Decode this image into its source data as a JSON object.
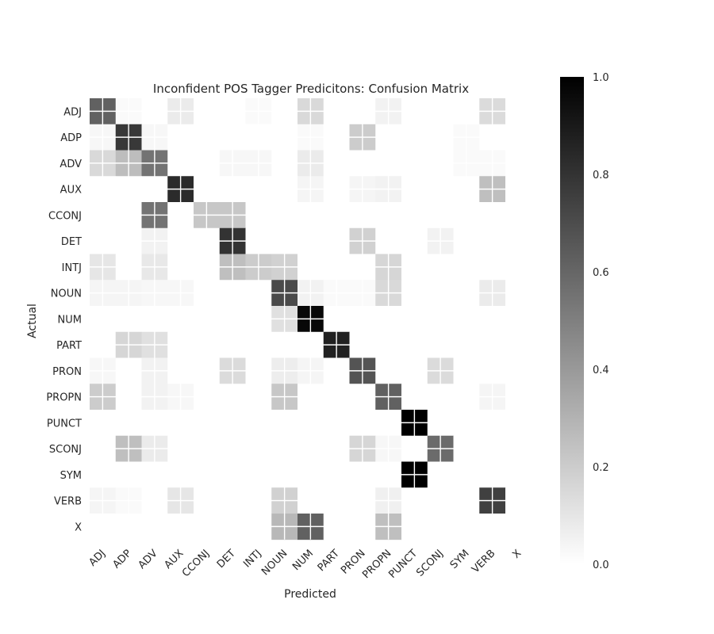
{
  "chart_data": {
    "type": "heatmap",
    "title": "Inconfident POS Tagger Predicitons: Confusion Matrix",
    "xlabel": "Predicted",
    "ylabel": "Actual",
    "x_categories": [
      "ADJ",
      "ADP",
      "ADV",
      "AUX",
      "CCONJ",
      "DET",
      "INTJ",
      "NOUN",
      "NUM",
      "PART",
      "PRON",
      "PROPN",
      "PUNCT",
      "SCONJ",
      "SYM",
      "VERB",
      "X"
    ],
    "y_categories": [
      "ADJ",
      "ADP",
      "ADV",
      "AUX",
      "CCONJ",
      "DET",
      "INTJ",
      "NOUN",
      "NUM",
      "PART",
      "PRON",
      "PROPN",
      "PUNCT",
      "SCONJ",
      "SYM",
      "VERB",
      "X"
    ],
    "values": [
      [
        0.62,
        0.02,
        0,
        0.08,
        0,
        0,
        0.02,
        0,
        0.15,
        0,
        0,
        0.05,
        0,
        0,
        0,
        0.14,
        0
      ],
      [
        0.03,
        0.78,
        0.03,
        0,
        0,
        0,
        0,
        0,
        0.02,
        0,
        0.2,
        0,
        0,
        0,
        0.02,
        0,
        0
      ],
      [
        0.15,
        0.26,
        0.55,
        0,
        0,
        0.03,
        0.03,
        0,
        0.08,
        0,
        0,
        0,
        0,
        0,
        0.02,
        0.02,
        0
      ],
      [
        0,
        0,
        0,
        0.83,
        0,
        0,
        0,
        0,
        0.04,
        0,
        0.04,
        0.05,
        0,
        0,
        0,
        0.25,
        0
      ],
      [
        0,
        0,
        0.55,
        0,
        0.22,
        0.22,
        0,
        0,
        0,
        0,
        0,
        0,
        0,
        0,
        0,
        0,
        0
      ],
      [
        0,
        0,
        0.05,
        0,
        0,
        0.8,
        0,
        0,
        0,
        0,
        0.18,
        0,
        0,
        0.05,
        0,
        0,
        0
      ],
      [
        0.1,
        0,
        0.09,
        0,
        0,
        0.25,
        0.2,
        0.18,
        0,
        0,
        0,
        0.16,
        0,
        0,
        0,
        0,
        0
      ],
      [
        0.04,
        0.04,
        0.03,
        0.03,
        0,
        0,
        0,
        0.71,
        0.05,
        0.02,
        0.02,
        0.15,
        0,
        0,
        0,
        0.08,
        0
      ],
      [
        0,
        0,
        0,
        0,
        0,
        0,
        0,
        0.12,
        0.97,
        0,
        0,
        0,
        0,
        0,
        0,
        0,
        0
      ],
      [
        0,
        0.16,
        0.12,
        0,
        0,
        0,
        0,
        0,
        0,
        0.87,
        0,
        0,
        0,
        0,
        0,
        0,
        0
      ],
      [
        0.03,
        0,
        0.05,
        0,
        0,
        0.14,
        0,
        0.07,
        0.04,
        0,
        0.67,
        0,
        0,
        0.14,
        0,
        0,
        0
      ],
      [
        0.2,
        0,
        0.05,
        0.03,
        0,
        0,
        0,
        0.22,
        0,
        0,
        0,
        0.62,
        0,
        0,
        0,
        0.04,
        0
      ],
      [
        0,
        0,
        0,
        0,
        0,
        0,
        0,
        0,
        0,
        0,
        0,
        0,
        1.0,
        0,
        0,
        0,
        0
      ],
      [
        0,
        0.25,
        0.08,
        0,
        0,
        0,
        0,
        0,
        0,
        0,
        0.16,
        0.03,
        0,
        0.58,
        0,
        0,
        0
      ],
      [
        0,
        0,
        0,
        0,
        0,
        0,
        0,
        0,
        0,
        0,
        0,
        0,
        1.0,
        0,
        0,
        0,
        0
      ],
      [
        0.04,
        0.02,
        0,
        0.1,
        0,
        0,
        0,
        0.18,
        0,
        0,
        0,
        0.06,
        0,
        0,
        0,
        0.75,
        0
      ],
      [
        0,
        0,
        0,
        0,
        0,
        0,
        0,
        0.28,
        0.62,
        0,
        0,
        0.25,
        0,
        0,
        0,
        0,
        0
      ]
    ],
    "colorscale": {
      "min": 0.0,
      "max": 1.0,
      "low_color": "#ffffff",
      "high_color": "#000000"
    },
    "colorbar_ticks": [
      "0.0",
      "0.2",
      "0.4",
      "0.6",
      "0.8",
      "1.0"
    ],
    "grid": true,
    "grid_color": "#ffffff"
  }
}
